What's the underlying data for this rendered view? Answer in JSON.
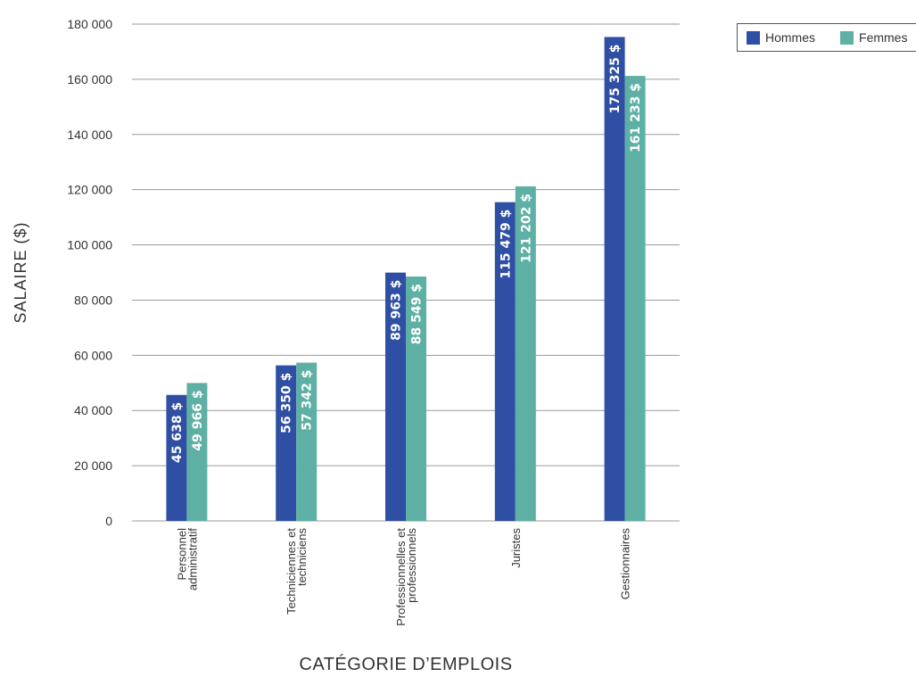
{
  "chart_data": {
    "type": "bar",
    "title": "",
    "xlabel": "CATÉGORIE D’EMPLOIS",
    "ylabel": "SALAIRE ($)",
    "ylim": [
      0,
      180000
    ],
    "yticks": [
      0,
      20000,
      40000,
      60000,
      80000,
      100000,
      120000,
      140000,
      160000,
      180000
    ],
    "ytick_labels": [
      "0",
      "20 000",
      "40 000",
      "60 000",
      "80 000",
      "100 000",
      "120 000",
      "140 000",
      "160 000",
      "180 000"
    ],
    "grid": true,
    "legend_position": "top-right",
    "categories": [
      [
        "Personnel",
        "administratif"
      ],
      [
        "Techniciennes et",
        "techniciens"
      ],
      [
        "Professionnelles et",
        "professionnels"
      ],
      [
        "Juristes"
      ],
      [
        "Gestionnaires"
      ]
    ],
    "series": [
      {
        "name": "Hommes",
        "color": "#2e4fa3",
        "values": [
          45638,
          56350,
          89963,
          115479,
          175325
        ],
        "labels": [
          "45 638 $",
          "56 350 $",
          "89 963 $",
          "115 479 $",
          "175 325 $"
        ]
      },
      {
        "name": "Femmes",
        "color": "#5fb0a4",
        "values": [
          49966,
          57342,
          88549,
          121202,
          161233
        ],
        "labels": [
          "49 966 $",
          "57 342 $",
          "88 549 $",
          "121 202 $",
          "161 233 $"
        ]
      }
    ]
  }
}
